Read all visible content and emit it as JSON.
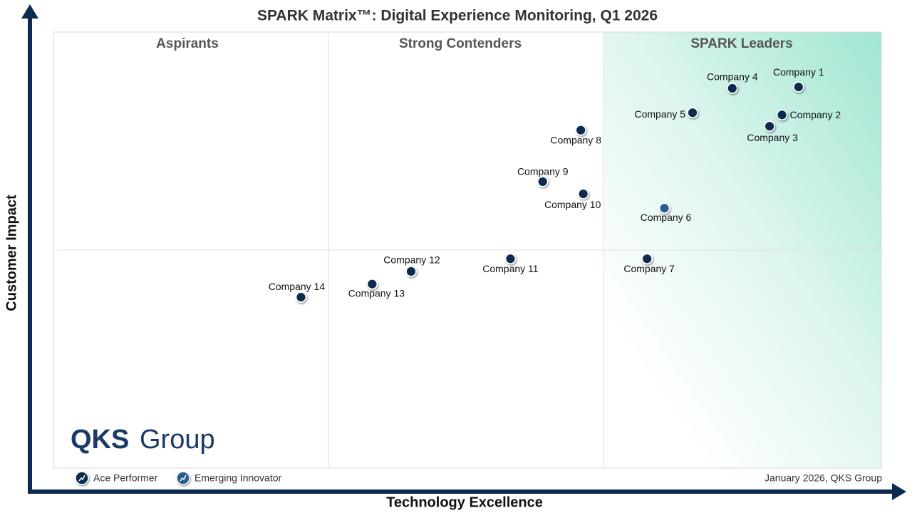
{
  "chart_data": {
    "type": "scatter",
    "title": "SPARK Matrix™: Digital Experience Monitoring, Q1 2026",
    "x_label": "Technology Excellence",
    "y_label": "Customer Impact",
    "quadrants": [
      "Aspirants",
      "Strong Contenders",
      "SPARK Leaders"
    ],
    "xlim": [
      0,
      100
    ],
    "ylim": [
      0,
      100
    ],
    "series": [
      {
        "name": "Ace Performer",
        "color": "#0d2a4f",
        "points": [
          {
            "name": "Company 1",
            "x": 90.0,
            "y": 87.4
          },
          {
            "name": "Company 2",
            "x": 88.0,
            "y": 81.0
          },
          {
            "name": "Company 3",
            "x": 86.5,
            "y": 78.4
          },
          {
            "name": "Company 4",
            "x": 82.0,
            "y": 87.1
          },
          {
            "name": "Company 5",
            "x": 77.2,
            "y": 81.5
          },
          {
            "name": "Company 7",
            "x": 71.7,
            "y": 48.0
          },
          {
            "name": "Company 8",
            "x": 63.7,
            "y": 77.5
          },
          {
            "name": "Company 9",
            "x": 59.1,
            "y": 65.7
          },
          {
            "name": "Company 10",
            "x": 64.0,
            "y": 62.9
          },
          {
            "name": "Company 11",
            "x": 55.2,
            "y": 48.0
          },
          {
            "name": "Company 12",
            "x": 43.2,
            "y": 45.1
          },
          {
            "name": "Company 13",
            "x": 38.5,
            "y": 42.2
          },
          {
            "name": "Company 14",
            "x": 29.9,
            "y": 39.2
          }
        ]
      },
      {
        "name": "Emerging Innovator",
        "color": "#2c5d8f",
        "points": [
          {
            "name": "Company 6",
            "x": 73.8,
            "y": 59.6
          }
        ]
      }
    ],
    "logo": {
      "mark": "QKS",
      "word": "Group"
    },
    "footnote": "January 2026, QKS Group"
  }
}
